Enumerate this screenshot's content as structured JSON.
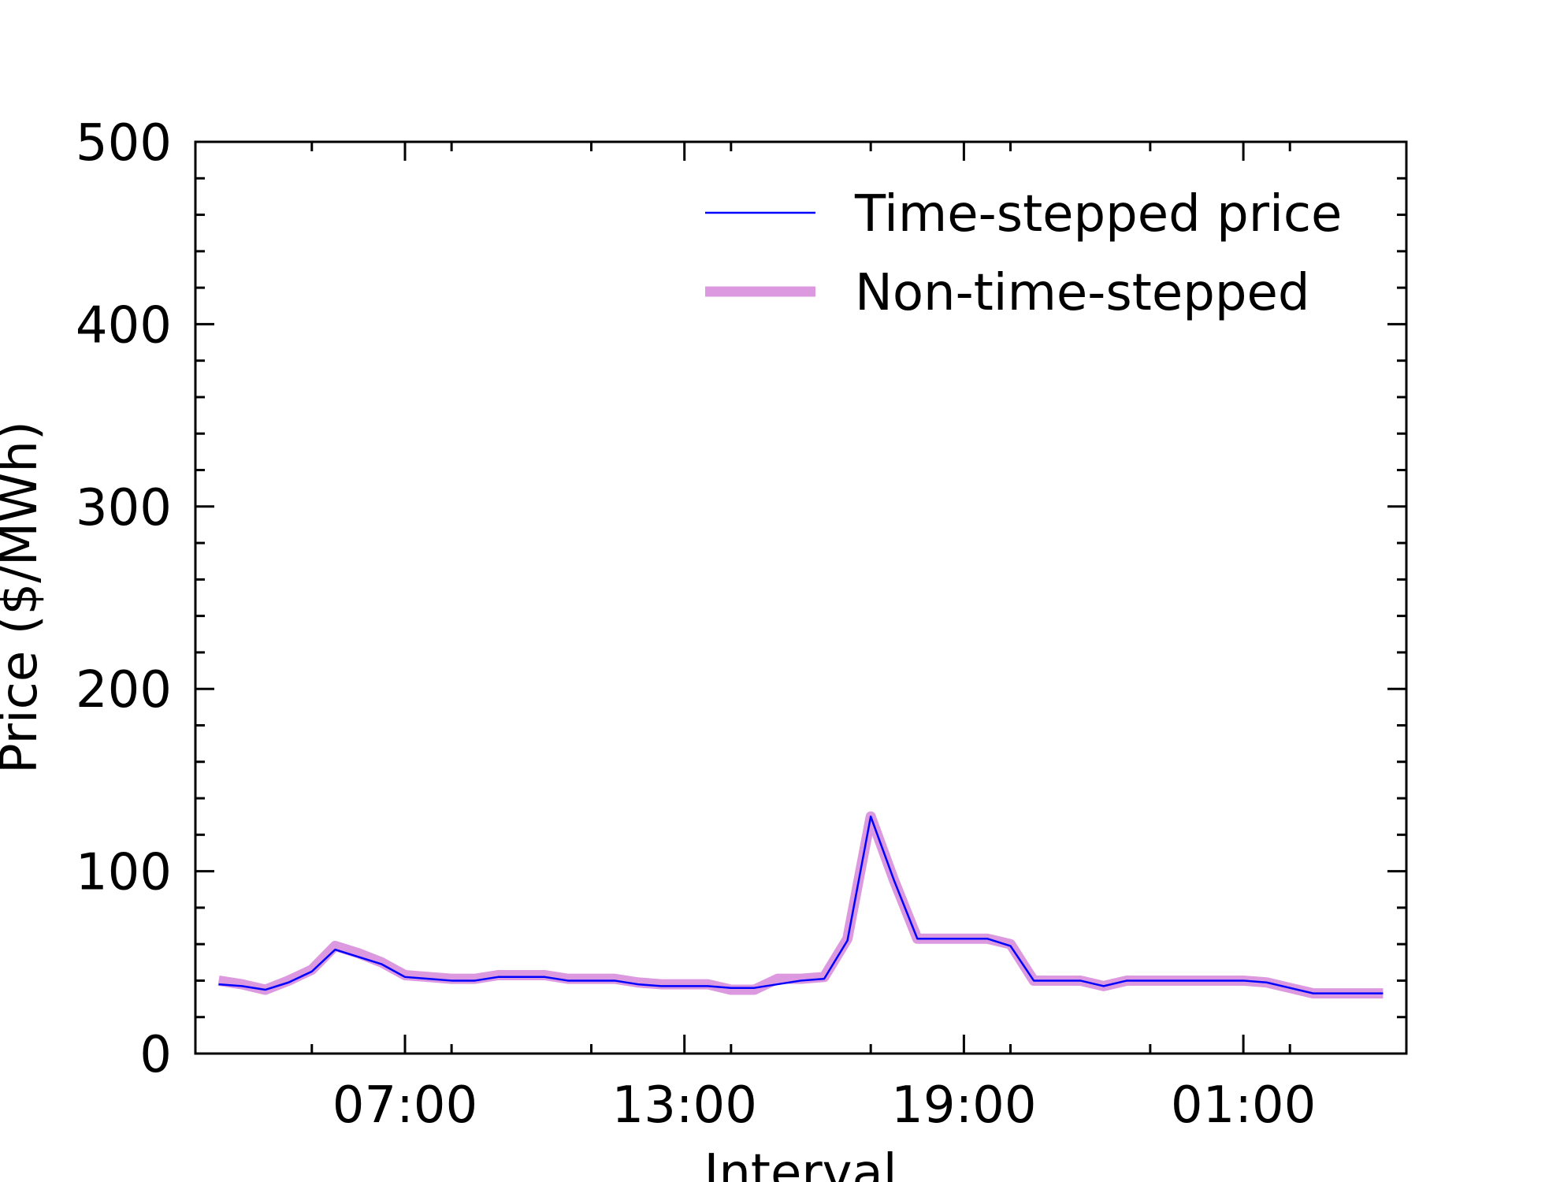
{
  "chart_data": {
    "type": "line",
    "xlabel": "Interval",
    "ylabel": "Price ($/MWh)",
    "ylim": [
      0,
      500
    ],
    "yticks": [
      0,
      100,
      200,
      300,
      400,
      500
    ],
    "xticks": [
      {
        "label": "07:00",
        "hour": 7
      },
      {
        "label": "13:00",
        "hour": 13
      },
      {
        "label": "19:00",
        "hour": 19
      },
      {
        "label": "01:00",
        "hour": 25
      }
    ],
    "xlim_hours": [
      2.5,
      28.5
    ],
    "legend_position": "top-right",
    "grid": false,
    "series": [
      {
        "name": "Time-stepped price",
        "color": "#0000ff",
        "x_hours": [
          3.0,
          3.5,
          4.0,
          4.5,
          5.0,
          5.5,
          6.0,
          6.5,
          7.0,
          7.5,
          8.0,
          8.5,
          9.0,
          9.5,
          10.0,
          10.5,
          11.0,
          11.5,
          12.0,
          12.5,
          13.0,
          13.5,
          14.0,
          14.5,
          15.0,
          15.5,
          16.0,
          16.5,
          17.0,
          17.5,
          18.0,
          18.5,
          19.0,
          19.5,
          20.0,
          20.5,
          21.0,
          21.5,
          22.0,
          22.5,
          23.0,
          23.5,
          24.0,
          24.5,
          25.0,
          25.5,
          26.0,
          26.5,
          27.0,
          27.5,
          28.0
        ],
        "values": [
          38,
          37,
          35,
          39,
          45,
          57,
          53,
          49,
          42,
          41,
          40,
          40,
          42,
          42,
          42,
          40,
          40,
          40,
          38,
          37,
          37,
          37,
          36,
          36,
          38,
          40,
          41,
          62,
          130,
          95,
          63,
          63,
          63,
          63,
          59,
          40,
          40,
          40,
          37,
          40,
          40,
          40,
          40,
          40,
          40,
          39,
          36,
          33,
          33,
          33,
          33
        ]
      },
      {
        "name": "Non-time-stepped",
        "color": "#dd99e0",
        "x_hours": [
          3.0,
          3.5,
          4.0,
          4.5,
          5.0,
          5.5,
          6.0,
          6.5,
          7.0,
          7.5,
          8.0,
          8.5,
          9.0,
          9.5,
          10.0,
          10.5,
          11.0,
          11.5,
          12.0,
          12.5,
          13.0,
          13.5,
          14.0,
          14.5,
          15.0,
          15.5,
          16.0,
          16.5,
          17.0,
          17.5,
          18.0,
          18.5,
          19.0,
          19.5,
          20.0,
          20.5,
          21.0,
          21.5,
          22.0,
          22.5,
          23.0,
          23.5,
          24.0,
          24.5,
          25.0,
          25.5,
          26.0,
          26.5,
          27.0,
          27.5,
          28.0
        ],
        "values": [
          40,
          38,
          35,
          40,
          46,
          59,
          55,
          50,
          43,
          42,
          41,
          41,
          43,
          43,
          43,
          41,
          41,
          41,
          39,
          38,
          38,
          38,
          35,
          35,
          41,
          41,
          42,
          63,
          130,
          95,
          63,
          63,
          63,
          63,
          60,
          40,
          40,
          40,
          37,
          40,
          40,
          40,
          40,
          40,
          40,
          39,
          36,
          33,
          33,
          33,
          33
        ]
      }
    ]
  }
}
